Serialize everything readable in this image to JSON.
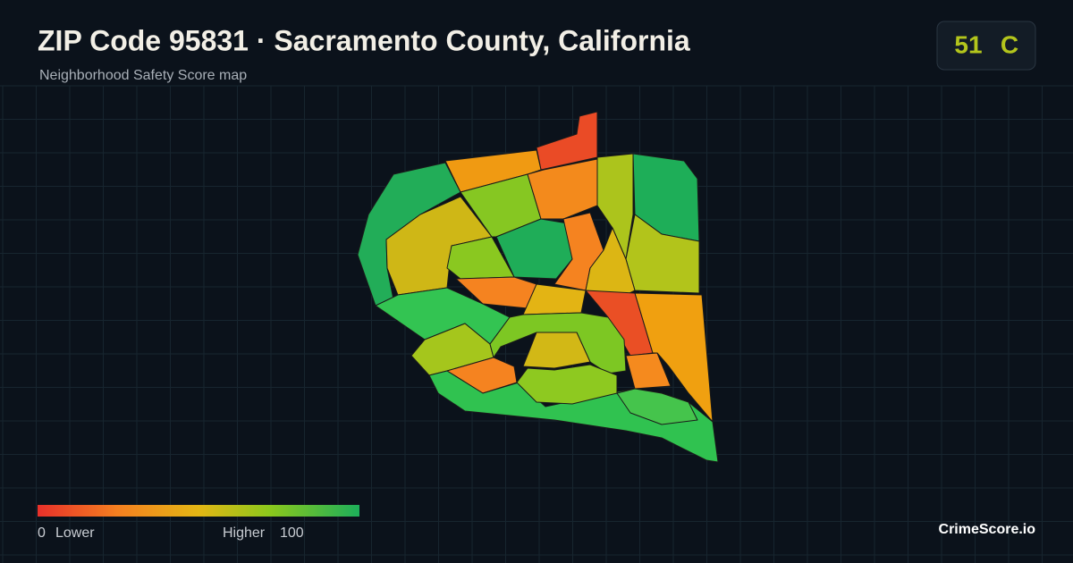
{
  "header": {
    "title": "ZIP Code 95831 · Sacramento County, California",
    "subtitle": "Neighborhood Safety Score map"
  },
  "score": {
    "value": 51,
    "grade": "C"
  },
  "legend": {
    "min": 0,
    "min_label": "Lower",
    "max_label": "Higher",
    "max": 100
  },
  "brand": "CrimeScore.io"
}
